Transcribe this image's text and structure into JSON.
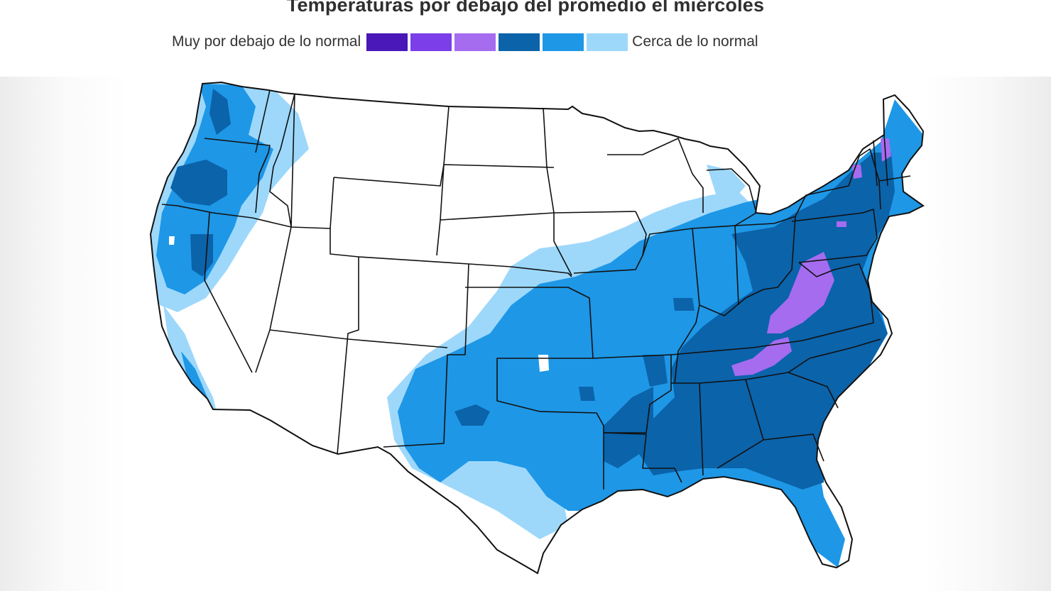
{
  "title": "Temperaturas por debajo del promedio el miércoles",
  "legend": {
    "left_label": "Muy por debajo de lo normal",
    "right_label": "Cerca de lo normal",
    "colors": [
      "#4a17b8",
      "#7b3ee8",
      "#a56cf0",
      "#0b63aa",
      "#1e97e6",
      "#9dd8fb"
    ]
  },
  "map": {
    "region": "contiguous-united-states",
    "land_color": "#ffffff",
    "border_color": "#111111"
  }
}
